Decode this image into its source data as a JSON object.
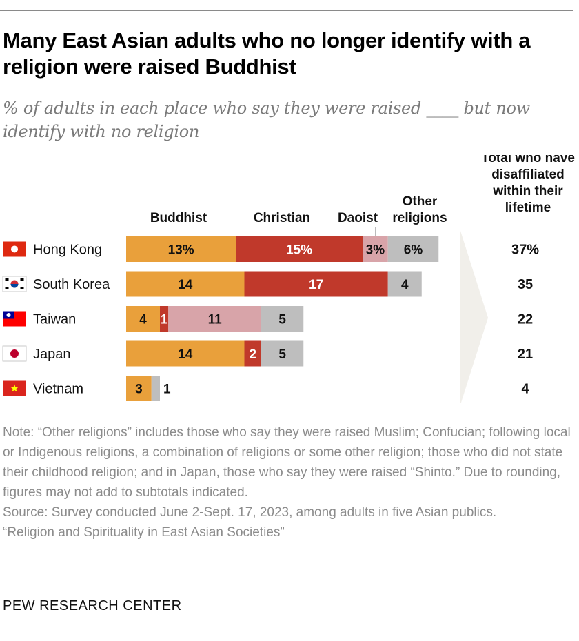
{
  "header": {
    "title": "Many East Asian adults who no longer identify with a religion were raised Buddhist",
    "subtitle": "% of adults in each place who say they were raised ____ but now identify with no religion"
  },
  "chart_data": {
    "type": "bar",
    "orientation": "horizontal",
    "stacked": true,
    "categories": [
      "Hong Kong",
      "South Korea",
      "Taiwan",
      "Japan",
      "Vietnam"
    ],
    "series": [
      {
        "name": "Buddhist",
        "values": [
          13,
          14,
          4,
          14,
          3
        ],
        "labels": [
          "13%",
          "14",
          "4",
          "14",
          "3"
        ],
        "color": "#E9A03B"
      },
      {
        "name": "Christian",
        "values": [
          15,
          17,
          1,
          2,
          0
        ],
        "labels": [
          "15%",
          "17",
          "1",
          "2",
          ""
        ],
        "color": "#C0392B"
      },
      {
        "name": "Daoist",
        "values": [
          3,
          0,
          11,
          0,
          0
        ],
        "labels": [
          "3%",
          "",
          "11",
          "",
          ""
        ],
        "color": "#D8A4A9"
      },
      {
        "name": "Other religions",
        "values": [
          6,
          4,
          5,
          5,
          1
        ],
        "labels": [
          "6%",
          "4",
          "5",
          "5",
          "1"
        ],
        "color": "#BEBEBE"
      }
    ],
    "total_header": "Total who have disaffiliated within their lifetime",
    "totals": [
      "37%",
      "35",
      "22",
      "21",
      "4"
    ],
    "grid": false,
    "legend": "column headers above bars"
  },
  "footer": {
    "note": "Note: “Other religions” includes those who say they were raised Muslim; Confucian; following local or Indigenous religions, a combination of religions or some other religion; those who did not state their childhood religion; and in Japan, those who say they were raised “Shinto.” Due to rounding, figures may not add to subtotals indicated.",
    "source": "Source: Survey conducted June 2-Sept. 17, 2023, among adults in five Asian publics.",
    "report": "“Religion and Spirituality in East Asian Societies”",
    "org": "PEW RESEARCH CENTER"
  }
}
